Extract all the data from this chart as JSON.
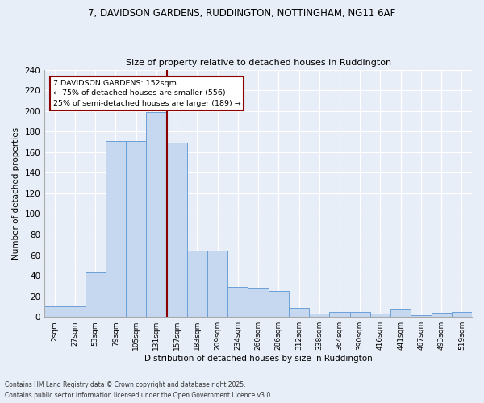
{
  "title_line1": "7, DAVIDSON GARDENS, RUDDINGTON, NOTTINGHAM, NG11 6AF",
  "title_line2": "Size of property relative to detached houses in Ruddington",
  "xlabel": "Distribution of detached houses by size in Ruddington",
  "ylabel": "Number of detached properties",
  "categories": [
    "2sqm",
    "27sqm",
    "53sqm",
    "79sqm",
    "105sqm",
    "131sqm",
    "157sqm",
    "183sqm",
    "209sqm",
    "234sqm",
    "260sqm",
    "286sqm",
    "312sqm",
    "338sqm",
    "364sqm",
    "390sqm",
    "416sqm",
    "441sqm",
    "467sqm",
    "493sqm",
    "519sqm"
  ],
  "values": [
    10,
    10,
    43,
    171,
    171,
    199,
    169,
    64,
    64,
    29,
    28,
    25,
    9,
    3,
    5,
    5,
    3,
    8,
    2,
    4,
    5
  ],
  "bar_color": "#c5d8f0",
  "bar_edge_color": "#6a9fd8",
  "vline_color": "#8b0000",
  "annotation_text": "7 DAVIDSON GARDENS: 152sqm\n← 75% of detached houses are smaller (556)\n25% of semi-detached houses are larger (189) →",
  "annotation_box_color": "#8b0000",
  "annotation_bg": "#ffffff",
  "background_color": "#e8eef8",
  "grid_color": "#ffffff",
  "ylim": [
    0,
    240
  ],
  "yticks": [
    0,
    20,
    40,
    60,
    80,
    100,
    120,
    140,
    160,
    180,
    200,
    220,
    240
  ],
  "footer_line1": "Contains HM Land Registry data © Crown copyright and database right 2025.",
  "footer_line2": "Contains public sector information licensed under the Open Government Licence v3.0."
}
